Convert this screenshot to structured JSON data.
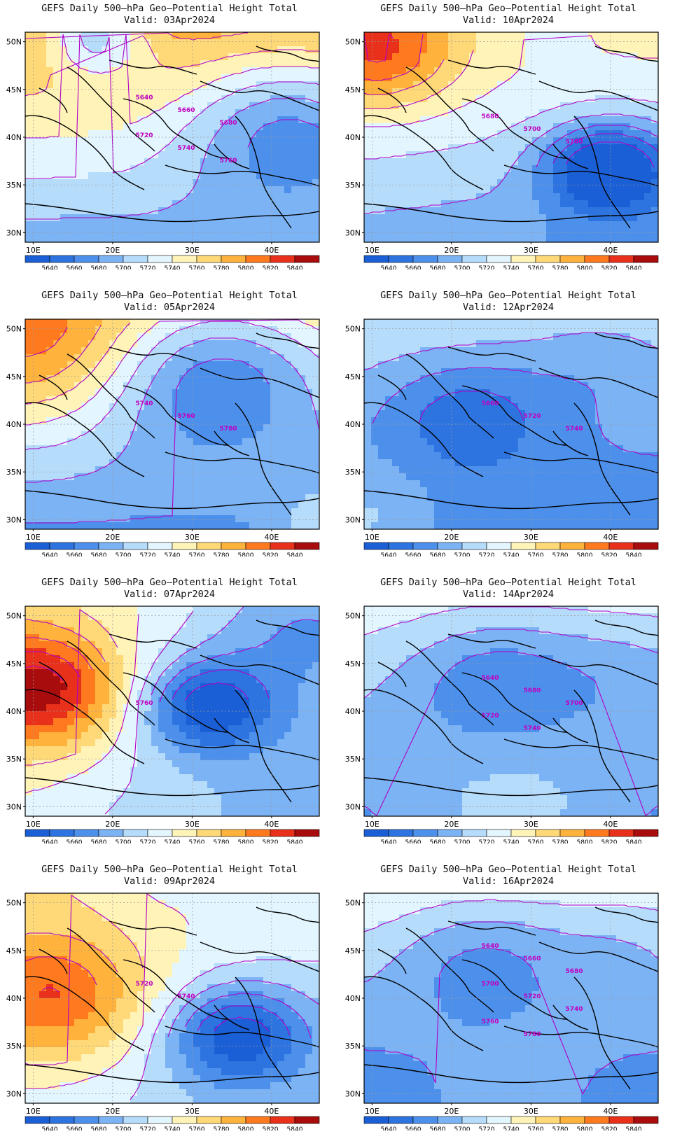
{
  "figure": {
    "panels": [
      {
        "title": "GEFS Daily 500–hPa Geo–Potential Height Total",
        "valid": "Valid: 03Apr2024",
        "pattern": {
          "base": 5740,
          "ny": -5.2,
          "gx": 0.0,
          "warm": [
            0.25,
            0.05,
            -60,
            0.12
          ],
          "trough": [
            0.9,
            0.45,
            -70,
            0.25
          ],
          "trough2": [
            0.2,
            -0.1,
            -40,
            0.1
          ]
        },
        "contour_labels": [
          "5640",
          "5660",
          "5680",
          "5720",
          "5740",
          "5760"
        ]
      },
      {
        "title": "GEFS Daily 500–hPa Geo–Potential Height Total",
        "valid": "Valid: 10Apr2024",
        "pattern": {
          "base": 5720,
          "ny": -3.6,
          "gx": -0.6,
          "warm": [
            0.05,
            0.1,
            70,
            0.18
          ],
          "trough": [
            0.83,
            0.65,
            -110,
            0.15
          ],
          "trough2": [
            0.6,
            -0.2,
            -30,
            0.2
          ]
        },
        "contour_labels": [
          "5680",
          "5700",
          "5760"
        ]
      },
      {
        "title": "GEFS Daily 500–hPa Geo–Potential Height Total",
        "valid": "Valid: 05Apr2024",
        "pattern": {
          "base": 5725,
          "ny": -4.8,
          "gx": 0.0,
          "warm": [
            0.05,
            0.15,
            50,
            0.25
          ],
          "trough": [
            0.65,
            0.25,
            -80,
            0.28
          ],
          "trough2": [
            1.0,
            1.0,
            30,
            0.12
          ]
        },
        "contour_labels": [
          "5740",
          "5760",
          "5780"
        ]
      },
      {
        "title": "GEFS Daily 500–hPa Geo–Potential Height Total",
        "valid": "Valid: 12Apr2024",
        "pattern": {
          "base": 5690,
          "ny": -3.0,
          "gx": 0.0,
          "warm": [
            0.0,
            1.0,
            40,
            0.2
          ],
          "trough": [
            0.35,
            0.45,
            -45,
            0.2
          ],
          "trough2": [
            0.8,
            0.2,
            -20,
            0.2
          ]
        },
        "contour_labels": [
          "5660",
          "5720",
          "5740"
        ]
      },
      {
        "title": "GEFS Daily 500–hPa Geo–Potential Height Total",
        "valid": "Valid: 07Apr2024",
        "pattern": {
          "base": 5720,
          "ny": -1.2,
          "gx": -2.4,
          "warm": [
            0.05,
            0.4,
            110,
            0.2
          ],
          "trough": [
            0.62,
            0.48,
            -95,
            0.16
          ],
          "trough2": [
            0.9,
            0.1,
            -30,
            0.2
          ]
        },
        "contour_labels": [
          "5760"
        ]
      },
      {
        "title": "GEFS Daily 500–hPa Geo–Potential Height Total",
        "valid": "Valid: 14Apr2024",
        "pattern": {
          "base": 5700,
          "ny": -3.2,
          "gx": 0.0,
          "warm": [
            0.5,
            1.1,
            40,
            0.3
          ],
          "trough": [
            0.45,
            0.35,
            -45,
            0.22
          ],
          "trough2": [
            0.9,
            0.3,
            -20,
            0.2
          ]
        },
        "contour_labels": [
          "5640",
          "5680",
          "5700",
          "5720",
          "5740"
        ]
      },
      {
        "title": "GEFS Daily 500–hPa Geo–Potential Height Total",
        "valid": "Valid: 09Apr2024",
        "pattern": {
          "base": 5730,
          "ny": -1.6,
          "gx": -1.3,
          "warm": [
            0.1,
            0.5,
            80,
            0.22
          ],
          "trough": [
            0.72,
            0.68,
            -95,
            0.17
          ],
          "trough2": [
            0.5,
            -0.2,
            -30,
            0.15
          ]
        },
        "contour_labels": [
          "5720",
          "5740"
        ]
      },
      {
        "title": "GEFS Daily 500–hPa Geo–Potential Height Total",
        "valid": "Valid: 16Apr2024",
        "pattern": {
          "base": 5700,
          "ny": -4.2,
          "gx": 0.0,
          "warm": [
            0.5,
            1.15,
            40,
            0.25
          ],
          "trough": [
            0.4,
            0.3,
            -40,
            0.22
          ],
          "trough2": [
            0.9,
            0.2,
            -20,
            0.2
          ]
        },
        "contour_labels": [
          "5640",
          "5660",
          "5680",
          "5700",
          "5720",
          "5740",
          "5760",
          "5780"
        ]
      }
    ],
    "axes": {
      "lat_labels": [
        "50N",
        "45N",
        "40N",
        "35N",
        "30N"
      ],
      "lon_labels": [
        "10E",
        "20E",
        "30E",
        "40E"
      ],
      "lat_range": [
        29,
        51
      ],
      "lon_range": [
        9,
        46
      ]
    },
    "colorbar": {
      "levels": [
        "5640",
        "5660",
        "5680",
        "5700",
        "5720",
        "5740",
        "5760",
        "5780",
        "5800",
        "5820",
        "5840"
      ],
      "colors": [
        "#1a5fd6",
        "#2d74e0",
        "#4d90ec",
        "#7cb3f4",
        "#b6dcfb",
        "#e3f6ff",
        "#fff3b8",
        "#ffd978",
        "#ffb23c",
        "#ff7a1e",
        "#e8301a",
        "#a80c0c"
      ]
    },
    "contour_color": "#b000c8",
    "coast_color": "#000000"
  }
}
